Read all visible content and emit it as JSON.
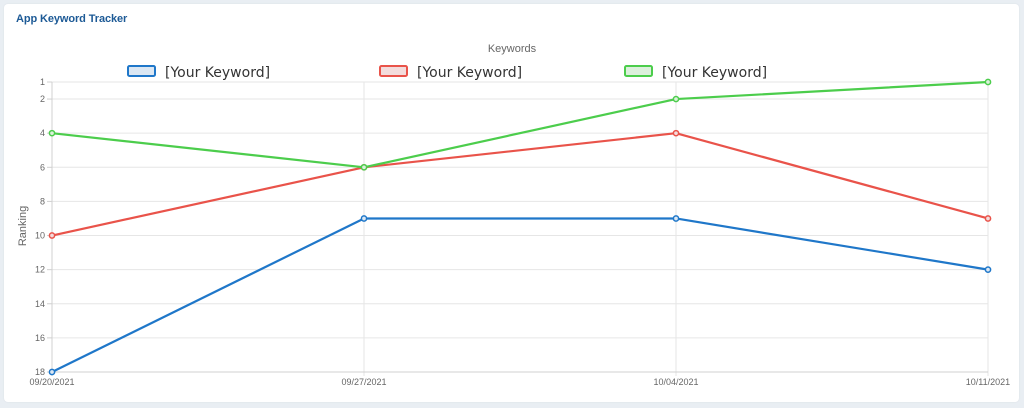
{
  "app": {
    "title": "App Keyword Tracker"
  },
  "chart_data": {
    "type": "line",
    "title": "Keywords",
    "xlabel": "",
    "ylabel": "Ranking",
    "categories": [
      "09/20/2021",
      "09/27/2021",
      "10/04/2021",
      "10/11/2021"
    ],
    "y_ticks": [
      1,
      2,
      4,
      6,
      8,
      10,
      12,
      14,
      16,
      18
    ],
    "ylim": [
      1,
      18
    ],
    "y_reversed": true,
    "grid": true,
    "legend_position": "top",
    "series": [
      {
        "name": "[Your Keyword]",
        "color": "#1f77c9",
        "fill": "#dbe7f3",
        "values": [
          18,
          9,
          9,
          12
        ]
      },
      {
        "name": "[Your Keyword]",
        "color": "#e9534a",
        "fill": "#f3dcdc",
        "values": [
          10,
          6,
          4,
          9
        ]
      },
      {
        "name": "[Your Keyword]",
        "color": "#4ccd4c",
        "fill": "#dcf0dc",
        "values": [
          4,
          6,
          2,
          1
        ]
      }
    ]
  }
}
